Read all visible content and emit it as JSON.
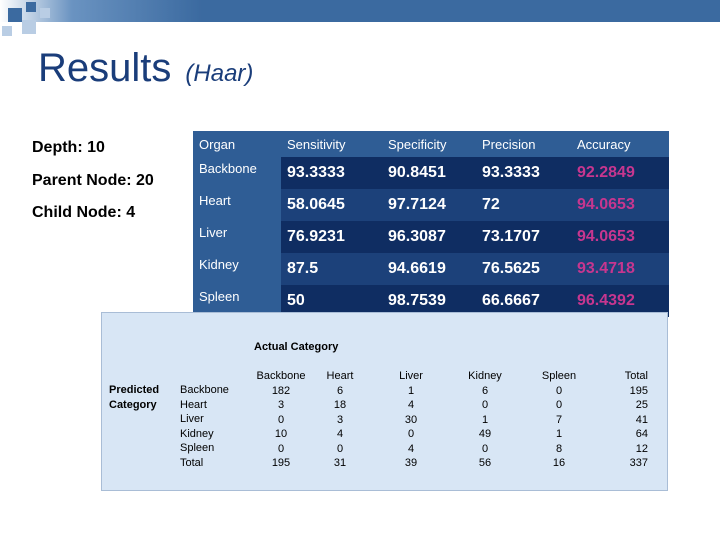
{
  "slide": {
    "title": "Results",
    "subtitle": "(Haar)"
  },
  "params": [
    "Depth: 10",
    "Parent Node: 20",
    "Child Node: 4"
  ],
  "metrics": {
    "headers": [
      "Organ",
      "Sensitivity",
      "Specificity",
      "Precision",
      "Accuracy"
    ],
    "rows": [
      [
        "Backbone",
        "93.3333",
        "90.8451",
        "93.3333",
        "92.2849"
      ],
      [
        "Heart",
        "58.0645",
        "97.7124",
        "72",
        "94.0653"
      ],
      [
        "Liver",
        "76.9231",
        "96.3087",
        "73.1707",
        "94.0653"
      ],
      [
        "Kidney",
        "87.5",
        "94.6619",
        "76.5625",
        "93.4718"
      ],
      [
        "Spleen",
        "50",
        "98.7539",
        "66.6667",
        "96.4392"
      ]
    ]
  },
  "confusion": {
    "caption": "Actual Category",
    "predicted_label": [
      "Predicted",
      "Category"
    ],
    "row_labels": [
      "Backbone",
      "Heart",
      "Liver",
      "Kidney",
      "Spleen",
      "Total"
    ],
    "columns": [
      {
        "header": "Backbone",
        "values": [
          "182",
          "3",
          "0",
          "10",
          "0",
          "195"
        ]
      },
      {
        "header": "Heart",
        "values": [
          "6",
          "18",
          "3",
          "4",
          "0",
          "31"
        ]
      },
      {
        "header": "Liver",
        "values": [
          "1",
          "4",
          "30",
          "0",
          "4",
          "39"
        ]
      },
      {
        "header": "Kidney",
        "values": [
          "6",
          "0",
          "1",
          "49",
          "0",
          "56"
        ]
      },
      {
        "header": "Spleen",
        "values": [
          "0",
          "0",
          "7",
          "1",
          "8",
          "16"
        ]
      },
      {
        "header": "Total",
        "values": [
          "195",
          "25",
          "41",
          "64",
          "12",
          "337"
        ]
      }
    ]
  }
}
